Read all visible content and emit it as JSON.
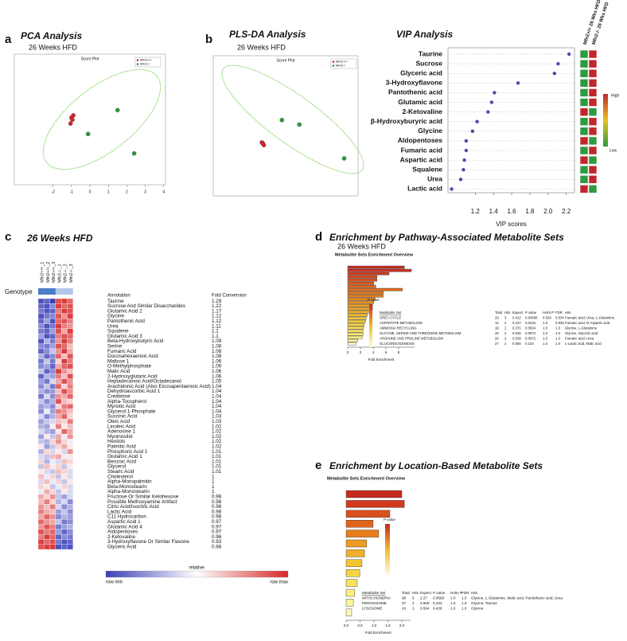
{
  "chart_data": [
    {
      "type": "scatter",
      "panel": "a",
      "title": "PCA Analysis",
      "subtitle": "26 Weeks HFD",
      "plot_title": "Score Plot",
      "xlim": [
        -4.1,
        4.1
      ],
      "ylim": [
        -4,
        4
      ],
      "xticks": [
        -2,
        -1,
        0,
        1,
        2,
        3,
        4
      ],
      "series": [
        {
          "name": "Mfn2+/+",
          "color": "#d7262b",
          "x": [
            -0.9,
            -1.0,
            -0.95,
            -1.05
          ],
          "y": [
            0.25,
            0.11,
            -0.02,
            -0.25
          ]
        },
        {
          "name": "Mfn2-/-",
          "color": "#2f9a32",
          "x": [
            -0.1,
            1.5,
            2.4
          ],
          "y": [
            -0.89,
            0.57,
            -2.08
          ]
        }
      ]
    },
    {
      "type": "scatter",
      "panel": "b",
      "title": "PLS-DA Analysis",
      "subtitle": "26 Weeks HFD",
      "plot_title": "Score Plot",
      "xlim": [
        -4.5,
        2.8
      ],
      "ylim": [
        -4,
        4
      ],
      "series": [
        {
          "name": "Mfn2+/+",
          "color": "#d7262b",
          "x": [
            -2.0,
            -1.95,
            -2.05
          ],
          "y": [
            -1.0,
            -1.1,
            -0.95
          ]
        },
        {
          "name": "Mfn2-/-",
          "color": "#2f9a32",
          "x": [
            -1.04,
            -0.16,
            2.1
          ],
          "y": [
            0.33,
            0.07,
            -1.86
          ]
        }
      ]
    },
    {
      "type": "dot",
      "title": "VIP Analysis",
      "xlabel": "VIP scores",
      "color": "#4b4ba8",
      "categories": [
        "Taurine",
        "Sucrose",
        "Glyceric acid",
        "3-Hydroxyflavone",
        "Pantothenic acid",
        "Glutamic acid",
        "2-Ketovaline",
        "β-Hydroxyburyric acid",
        "Glycine",
        "Aldopentoses",
        "Fumaric acid",
        "Aspartic acid",
        "Squalene",
        "Urea",
        "Lactic acid"
      ],
      "values": [
        2.23,
        2.11,
        2.07,
        1.67,
        1.41,
        1.38,
        1.34,
        1.22,
        1.17,
        1.1,
        1.1,
        1.08,
        1.07,
        1.04,
        0.94
      ],
      "xlim": [
        0.9,
        2.29
      ],
      "xticks": [
        1.2,
        1.4,
        1.6,
        1.8,
        {
          "value": 2,
          "label": "2.0"
        },
        2.2
      ],
      "heat_columns": [
        "Mfn2+/+ 26 Wks HFD",
        "Mfn2-/- 26 Wks HFD"
      ],
      "heat": [
        [
          -1,
          1
        ],
        [
          -1,
          1
        ],
        [
          -1,
          1
        ],
        [
          -1,
          1
        ],
        [
          -1,
          1
        ],
        [
          -1,
          1
        ],
        [
          1,
          -1
        ],
        [
          -1,
          1
        ],
        [
          -1,
          1
        ],
        [
          1,
          -1
        ],
        [
          -1,
          1
        ],
        [
          1,
          -1
        ],
        [
          -1,
          1
        ],
        [
          -1,
          1
        ],
        [
          1,
          -1
        ]
      ],
      "heat_colors": [
        "#2e9a3f",
        "#c0272d"
      ],
      "colorbar": {
        "high": "High",
        "low": "Low"
      }
    },
    {
      "type": "heatmap",
      "panel": "c",
      "title": "26 Weeks HFD",
      "genotype_label": "Genotype",
      "columns": [
        "Mfn2+/+_1",
        "Mfn2+/+_2",
        "Mfn2+/+_3",
        "Mfn2-/-_1",
        "Mfn2-/-_2",
        "Mfn2-/-_3"
      ],
      "annotation_header": "Annotation",
      "fold_header": "Fold Conversion",
      "rows": [
        "Taurine",
        "Sucrose And Similar Disaccharides",
        "Glutamic Acid  2",
        "Glycine",
        "Pantothenic Acid",
        "Urea",
        "Squalene",
        "Glutamic Acid  3",
        "Beta-Hydroxybutyric Acid",
        "Serine",
        "Fumaric Acid",
        "Docosahexaenoic Acid",
        "Maltose  1",
        "O-Methylphosphate",
        "Malic Acid",
        "2-Hydroxyglutaric Acid",
        "Heptadecanoic Acid/Octadecanol",
        "Arachidonic Acid (Also Eicosapentaenoic Acid)",
        "Dehydroascorbic Acid  1",
        "Creatinine",
        "Alpha-Tocopherol",
        "Myristic Acid",
        "Glycerol 1-Phosphate",
        "Succinic Acid",
        "Oleic Acid",
        "Linoleic Acid",
        "Adenosine  1",
        "Myoinositol",
        "Hexitols",
        "Palmitic Acid",
        "Phosphoric Acid  1",
        "Glutamic Acid  1",
        "Benzoic Acid",
        "Glycerol",
        "Stearic Acid",
        "Cholesterol",
        "Alpha-Monopalmitin",
        "Beta-Monostearin",
        "Alpha-Monostearin",
        "Fructose Or Similar Ketohexose",
        "Possible Methoxyamine Artifact",
        "Citric Acid/Isocitric Acid",
        "Lactic Acid",
        "C11 Hydrocarbon",
        "Aspartic Acid  1",
        "Glutamic Acid  4",
        "Aldopentoses",
        "2-Ketovaline",
        "3-Hydroxyflavone Or Similar Flavone",
        "Glyceric Acid"
      ],
      "fold_conversion": [
        "1.29",
        "1.22",
        "1.17",
        "1.12",
        "1.12",
        "1.11",
        "1.1",
        "1.1",
        "1.09",
        "1.08",
        "1.08",
        "1.08",
        "1.06",
        "1.06",
        "1.06",
        "1.06",
        "1.05",
        "1.04",
        "1.04",
        "1.04",
        "1.04",
        "1.04",
        "1.04",
        "1.03",
        "1.03",
        "1.02",
        "1.02",
        "1.02",
        "1.02",
        "1.02",
        "1.01",
        "1.01",
        "1.01",
        "1.01",
        "1.01",
        "1",
        "1",
        "1",
        "1",
        "0.98",
        "0.98",
        "0.98",
        "0.98",
        "0.98",
        "0.97",
        "0.97",
        "0.97",
        "0.96",
        "0.93",
        "0.88"
      ],
      "matrix": [
        [
          -0.9,
          -0.8,
          -1,
          0.8,
          0.9,
          0.7
        ],
        [
          -0.8,
          -0.9,
          -0.6,
          0.9,
          0.7,
          0.8
        ],
        [
          -0.7,
          -0.9,
          -0.8,
          0.6,
          0.9,
          0.8
        ],
        [
          -0.9,
          -0.7,
          -0.6,
          0.8,
          0.5,
          0.9
        ],
        [
          -0.8,
          -0.5,
          -0.9,
          0.7,
          0.8,
          0.6
        ],
        [
          -0.6,
          -0.9,
          -0.7,
          0.9,
          0.6,
          0.5
        ],
        [
          -0.7,
          -0.8,
          -0.5,
          0.8,
          0.4,
          0.9
        ],
        [
          -0.5,
          -0.9,
          -0.8,
          0.6,
          0.8,
          0.7
        ],
        [
          -0.9,
          -0.4,
          -0.7,
          0.5,
          0.9,
          0.6
        ],
        [
          -0.6,
          -0.7,
          -0.5,
          0.8,
          0.7,
          0.3
        ],
        [
          -0.8,
          -0.6,
          -0.3,
          0.5,
          0.9,
          0.4
        ],
        [
          -0.4,
          -0.8,
          -0.6,
          0.7,
          0.3,
          0.8
        ],
        [
          -0.7,
          -0.3,
          -0.7,
          0.2,
          0.9,
          0.6
        ],
        [
          -0.6,
          -0.5,
          -0.8,
          0.4,
          0.7,
          0.8
        ],
        [
          -0.3,
          -0.8,
          -0.6,
          0.9,
          0.5,
          0.3
        ],
        [
          -0.8,
          -0.4,
          -0.5,
          0.6,
          0.3,
          0.8
        ],
        [
          -0.5,
          -0.7,
          -0.2,
          0.4,
          0.8,
          0.5
        ],
        [
          -0.6,
          -0.3,
          -0.7,
          0.7,
          0.2,
          0.6
        ],
        [
          -0.4,
          -0.6,
          -0.5,
          0.3,
          0.8,
          0.5
        ],
        [
          -0.7,
          -0.2,
          -0.6,
          0.5,
          0.4,
          0.7
        ],
        [
          -0.3,
          -0.6,
          -0.4,
          0.8,
          0.3,
          0.2
        ],
        [
          -0.5,
          -0.4,
          -0.6,
          0.2,
          0.6,
          0.7
        ],
        [
          -0.6,
          -0.1,
          -0.5,
          0.6,
          0.5,
          0.3
        ],
        [
          -0.2,
          -0.6,
          -0.4,
          0.4,
          0.7,
          0.2
        ],
        [
          -0.5,
          -0.3,
          -0.2,
          0.3,
          0.2,
          0.6
        ],
        [
          -0.4,
          -0.5,
          0.1,
          0.6,
          0.1,
          0.3
        ],
        [
          -0.2,
          -0.4,
          -0.5,
          0.1,
          0.7,
          0.4
        ],
        [
          -0.5,
          0.1,
          -0.3,
          0.4,
          -0.1,
          0.5
        ],
        [
          -0.3,
          -0.4,
          0.2,
          0.5,
          0.2,
          -0.1
        ],
        [
          0.1,
          -0.5,
          -0.3,
          0.2,
          0.4,
          0.1
        ],
        [
          -0.4,
          0.2,
          -0.2,
          0.1,
          -0.2,
          0.5
        ],
        [
          -0.2,
          -0.3,
          0.3,
          0.4,
          -0.1,
          0.1
        ],
        [
          0.2,
          -0.4,
          -0.1,
          -0.2,
          0.3,
          0.2
        ],
        [
          -0.3,
          0.3,
          0.1,
          0.2,
          -0.3,
          0.1
        ],
        [
          0.1,
          -0.2,
          -0.3,
          0.3,
          0.2,
          -0.2
        ],
        [
          0.3,
          -0.1,
          0.2,
          -0.3,
          0.1,
          -0.2
        ],
        [
          -0.2,
          0.3,
          -0.1,
          0.2,
          -0.3,
          0.1
        ],
        [
          0.2,
          0.1,
          -0.3,
          -0.1,
          0.2,
          -0.2
        ],
        [
          -0.1,
          0.4,
          0.2,
          -0.3,
          0.1,
          -0.2
        ],
        [
          0.4,
          0.2,
          0.5,
          -0.3,
          -0.5,
          -0.2
        ],
        [
          0.3,
          0.6,
          0.2,
          -0.4,
          -0.2,
          -0.6
        ],
        [
          0.5,
          0.3,
          0.6,
          -0.2,
          -0.6,
          -0.4
        ],
        [
          0.6,
          0.4,
          0.3,
          -0.5,
          -0.3,
          -0.6
        ],
        [
          0.4,
          0.7,
          0.5,
          -0.6,
          -0.4,
          -0.5
        ],
        [
          0.7,
          0.5,
          0.4,
          -0.3,
          -0.7,
          -0.6
        ],
        [
          0.5,
          0.8,
          0.6,
          -0.7,
          -0.5,
          -0.4
        ],
        [
          0.8,
          0.6,
          0.7,
          -0.5,
          -0.8,
          -0.6
        ],
        [
          0.6,
          0.9,
          0.7,
          -0.8,
          -0.6,
          -0.7
        ],
        [
          0.9,
          0.7,
          0.8,
          -0.7,
          -0.9,
          -0.8
        ],
        [
          0.8,
          0.9,
          0.9,
          -0.9,
          -0.8,
          -0.9
        ]
      ],
      "colorbar": {
        "title": "relative",
        "min": "row min",
        "max": "row max"
      }
    },
    {
      "type": "bar",
      "panel": "d",
      "title": "Enrichment by Pathway-Associated Metabolite Sets",
      "subtitle": "26 Weeks HFD",
      "plot_title": "Metabolite Sets Enrichment Overview",
      "values": [
        8.9,
        10,
        6.5,
        4.6,
        4.6,
        4.1,
        4.4,
        8.6,
        5.6,
        5.6,
        4.3,
        4.1,
        3.9,
        3.9,
        3.4,
        3.1,
        2.9,
        2.8,
        2.6,
        2.5,
        2.4,
        2.4,
        2.3,
        1.6,
        1.3
      ],
      "colors": [
        "#c62a1f",
        "#cc3020",
        "#d03a1e",
        "#d4461c",
        "#d8501b",
        "#dc5a1a",
        "#e0641a",
        "#e06a1c",
        "#e4741c",
        "#e67e1c",
        "#e8881e",
        "#ea9220",
        "#ec9c22",
        "#eea626",
        "#f0b02a",
        "#f2ba2e",
        "#f4c434",
        "#f5cc3c",
        "#f6d446",
        "#f7dc52",
        "#f8e260",
        "#f9e870",
        "#faee84",
        "#fbf29c",
        "#fcf6c0"
      ],
      "xlim": [
        0,
        10.5
      ],
      "xticks": [
        0,
        2,
        4,
        6,
        8
      ],
      "xlabel": "Fold Enrichment",
      "legend_title": "P value",
      "table": {
        "columns": [
          "Metabolite Set",
          "Total",
          "Hits",
          "Expect",
          "P value",
          "Holm P",
          "FDR",
          "Hits"
        ],
        "rows": [
          [
            "UREA CYCLE",
            "29",
            "3",
            "0.412",
            "0.00668",
            "0.534",
            "0.534",
            "Fumaric acid, Urea, L-Glutamine"
          ],
          [
            "ASPARTATE METABOLISM",
            "12",
            "2",
            "0.247",
            "0.0234",
            "1.0",
            "0.935",
            "Fumaric acid, D-Aspartic acid"
          ],
          [
            "AMMONIA RECYCLING",
            "18",
            "2",
            "0.371",
            "0.0504",
            "1.0",
            "1.0",
            "Glycine, L-Glutamine"
          ],
          [
            "GLYCINE, SERINE AND THREONINE METABOLISM",
            "26",
            "2",
            "0.536",
            "0.0972",
            "1.0",
            "1.0",
            "Glycine, Glyceric acid"
          ],
          [
            "ARGININE AND PROLINE METABOLISM",
            "26",
            "2",
            "0.536",
            "0.0972",
            "1.0",
            "1.0",
            "Fumaric acid, Urea"
          ],
          [
            "GLUCONEOGENESIS",
            "27",
            "2",
            "0.556",
            "0.104",
            "1.0",
            "1.0",
            "L-Lactic acid, Malic acid"
          ]
        ]
      }
    },
    {
      "type": "bar",
      "panel": "e",
      "title": "Enrichment by Location-Based Metabolite Sets",
      "plot_title": "Metabolite Sets Enrichment Overview",
      "values": [
        2.0,
        2.09,
        1.57,
        0.97,
        1.17,
        0.74,
        0.66,
        0.57,
        0.49,
        0.4,
        0.31,
        0.26,
        0.2
      ],
      "colors": [
        "#c62a1f",
        "#d03a1e",
        "#d8501b",
        "#e0641a",
        "#e67e1c",
        "#ec9c22",
        "#f0b02a",
        "#f4c434",
        "#f6d446",
        "#f8e260",
        "#faee84",
        "#fbf29c",
        "#fcf6c0"
      ],
      "xlim": [
        0,
        2.3
      ],
      "xticks": [
        {
          "value": 0,
          "label": "0.0"
        },
        0.5,
        {
          "value": 1,
          "label": "1.0"
        },
        1.5,
        {
          "value": 2,
          "label": "2.0"
        }
      ],
      "xlabel": "Fold Enrichment",
      "legend_title": "P value",
      "table": {
        "columns": [
          "Metabolite Set",
          "Total",
          "Hits",
          "Expect",
          "P value",
          "Holm P",
          "FDR",
          "Hits"
        ],
        "rows": [
          [
            "MITOCHONDRIA",
            "98",
            "5",
            "2.27",
            "0.0568",
            "1.0",
            "1.0",
            "Glycine, L-Glutamine, Malic acid, Pantothenic acid, Urea"
          ],
          [
            "PEROXISOME",
            "37",
            "2",
            "0.909",
            "0.233",
            "1.0",
            "1.0",
            "Glycine, Taurine"
          ],
          [
            "LYSOSOME",
            "24",
            "1",
            "0.564",
            "0.428",
            "1.0",
            "1.0",
            "Glycine"
          ]
        ]
      }
    }
  ]
}
